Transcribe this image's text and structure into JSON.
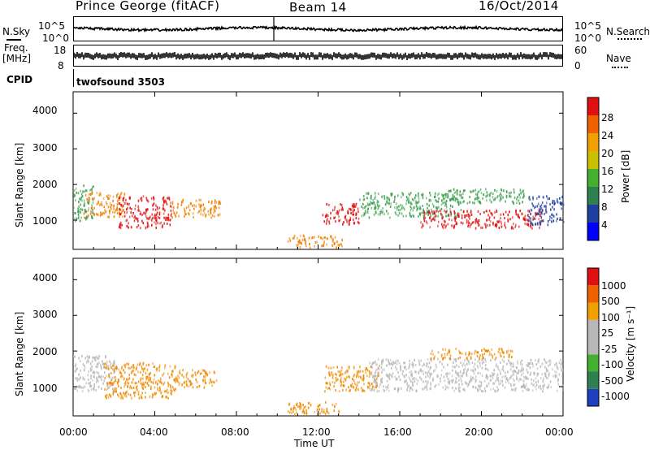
{
  "header": {
    "station": "Prince George (fitACF)",
    "beam": "Beam 14",
    "date": "16/Oct/2014"
  },
  "summary": {
    "nsky_label": "N.Sky",
    "nsky_ticks": [
      "10^5",
      "10^0"
    ],
    "nsearch_label": "N.Search",
    "nsearch_ticks": [
      "10^5",
      "10^0"
    ],
    "freq_label": "Freq.",
    "freq_unit": "[MHz]",
    "freq_ticks": [
      "18",
      "8"
    ],
    "nave_label": "Nave",
    "nave_ticks": [
      "60",
      "0"
    ],
    "cpid_label": "CPID",
    "cpid_value": "twofsound 3503"
  },
  "chart_data": [
    {
      "type": "heatmap",
      "panel": "power",
      "ylabel": "Slant Range [km]",
      "yticks": [
        "4000",
        "3000",
        "2000",
        "1000"
      ],
      "ylim": [
        180,
        4600
      ],
      "xlim_hours": [
        0,
        24
      ],
      "colorbar_label": "Power [dB]",
      "colorbar_ticks": [
        "28",
        "24",
        "20",
        "16",
        "12",
        "8",
        "4"
      ],
      "colorbar_colors": [
        "#0000ff",
        "#1e3ea0",
        "#2f7f4f",
        "#44b030",
        "#c8c000",
        "#f0a000",
        "#f06000",
        "#e01010"
      ],
      "bands": [
        {
          "t0": 0.0,
          "t1": 1.0,
          "r0": 1000,
          "r1": 2000,
          "level": "green"
        },
        {
          "t0": 0.5,
          "t1": 2.5,
          "r0": 1100,
          "r1": 1800,
          "level": "orange"
        },
        {
          "t0": 2.2,
          "t1": 4.8,
          "r0": 800,
          "r1": 1700,
          "level": "red"
        },
        {
          "t0": 4.8,
          "t1": 7.2,
          "r0": 1100,
          "r1": 1600,
          "level": "orange"
        },
        {
          "t0": 10.5,
          "t1": 13.2,
          "r0": 250,
          "r1": 600,
          "level": "orange"
        },
        {
          "t0": 12.2,
          "t1": 14.0,
          "r0": 900,
          "r1": 1500,
          "level": "red"
        },
        {
          "t0": 14.0,
          "t1": 19.0,
          "r0": 1100,
          "r1": 1800,
          "level": "green"
        },
        {
          "t0": 17.0,
          "t1": 23.0,
          "r0": 800,
          "r1": 1300,
          "level": "red"
        },
        {
          "t0": 18.0,
          "t1": 22.3,
          "r0": 1500,
          "r1": 1900,
          "level": "green"
        },
        {
          "t0": 22.3,
          "t1": 24.0,
          "r0": 900,
          "r1": 1700,
          "level": "blue"
        }
      ]
    },
    {
      "type": "heatmap",
      "panel": "velocity",
      "ylabel": "Slant Range [km]",
      "yticks": [
        "4000",
        "3000",
        "2000",
        "1000"
      ],
      "ylim": [
        180,
        4600
      ],
      "xlim_hours": [
        0,
        24
      ],
      "xlabel": "Time UT",
      "xticks": [
        "00:00",
        "04:00",
        "08:00",
        "12:00",
        "16:00",
        "20:00",
        "00:00"
      ],
      "colorbar_label": "Velocity [m s⁻¹]",
      "colorbar_ticks": [
        "1000",
        "500",
        "100",
        "25",
        "-25",
        "-100",
        "-500",
        "-1000"
      ],
      "colorbar_colors": [
        "#1e40c0",
        "#2f7f4f",
        "#44b030",
        "#b8b8b8",
        "#b8b8b8",
        "#f0a000",
        "#f06000",
        "#e01010"
      ],
      "bands": [
        {
          "t0": 0.0,
          "t1": 2.0,
          "r0": 900,
          "r1": 1900,
          "level": "grey"
        },
        {
          "t0": 1.5,
          "t1": 5.0,
          "r0": 700,
          "r1": 1700,
          "level": "orange"
        },
        {
          "t0": 5.0,
          "t1": 7.0,
          "r0": 1000,
          "r1": 1500,
          "level": "orange"
        },
        {
          "t0": 10.5,
          "t1": 13.0,
          "r0": 250,
          "r1": 600,
          "level": "orange"
        },
        {
          "t0": 12.3,
          "t1": 15.0,
          "r0": 900,
          "r1": 1600,
          "level": "orange"
        },
        {
          "t0": 14.5,
          "t1": 24.0,
          "r0": 900,
          "r1": 1800,
          "level": "grey"
        },
        {
          "t0": 17.5,
          "t1": 21.5,
          "r0": 1800,
          "r1": 2100,
          "level": "orange"
        }
      ]
    }
  ]
}
